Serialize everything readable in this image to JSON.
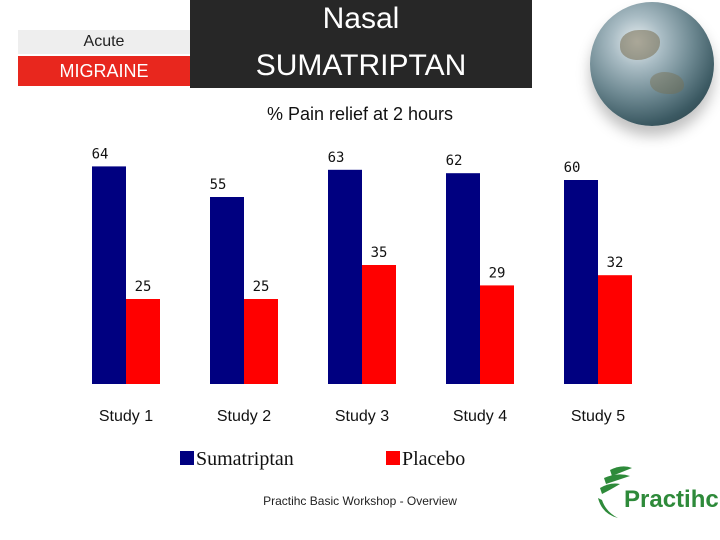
{
  "header": {
    "acute_label": "Acute",
    "migraine_label": "MIGRAINE",
    "title_line1": "Nasal",
    "title_line2": "SUMATRIPTAN"
  },
  "chart_data": {
    "type": "bar",
    "title": "% Pain relief at 2 hours",
    "xlabel": "",
    "ylabel": "",
    "ylim": [
      0,
      70
    ],
    "grid": false,
    "legend_position": "bottom",
    "categories": [
      "Study 1",
      "Study 2",
      "Study 3",
      "Study 4",
      "Study 5"
    ],
    "series": [
      {
        "name": "Sumatriptan",
        "color": "#000080",
        "values": [
          64,
          55,
          63,
          62,
          60
        ]
      },
      {
        "name": "Placebo",
        "color": "#ff0000",
        "values": [
          25,
          25,
          35,
          29,
          32
        ]
      }
    ]
  },
  "footer": {
    "text": "Practihc Basic Workshop - Overview"
  },
  "logo": {
    "text": "Practihc",
    "color": "#2e8a3a"
  },
  "colors": {
    "accent": "#e8271e",
    "title_bg": "#272727"
  }
}
